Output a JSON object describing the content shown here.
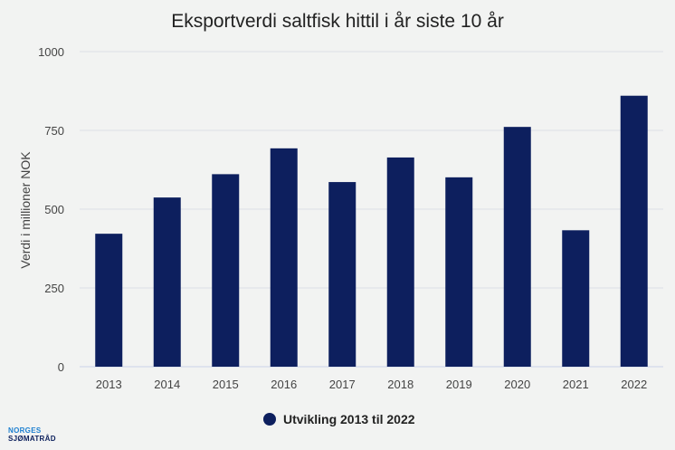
{
  "colors": {
    "bar": "#0d1f5e",
    "grid": "#dcdfe6",
    "axis": "#c9d3e8",
    "background": "#f2f3f2"
  },
  "chart_data": {
    "type": "bar",
    "title": "Eksportverdi saltfisk hittil i år siste 10 år",
    "xlabel": "",
    "ylabel": "Verdi i millioner NOK",
    "categories": [
      "2013",
      "2014",
      "2015",
      "2016",
      "2017",
      "2018",
      "2019",
      "2020",
      "2021",
      "2022"
    ],
    "series": [
      {
        "name": "Utvikling 2013 til 2022",
        "values": [
          422,
          537,
          611,
          693,
          586,
          664,
          601,
          761,
          433,
          860
        ]
      }
    ],
    "ylim": [
      0,
      1000
    ],
    "yticks": [
      0,
      250,
      500,
      750,
      1000
    ],
    "grid": true,
    "legend": "bottom-center"
  },
  "logo": {
    "line1": "NORGES",
    "line2": "SJØMATRÅD"
  }
}
